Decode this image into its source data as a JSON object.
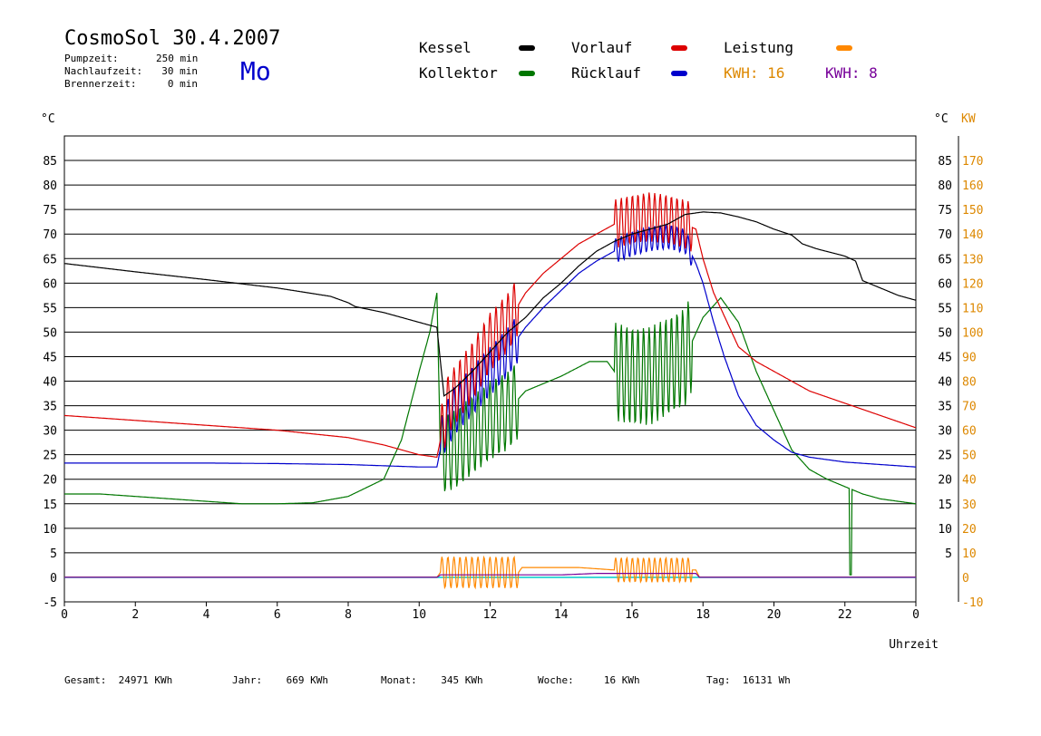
{
  "header": {
    "title": "CosmoSol 30.4.2007",
    "pumpzeit_label": "Pumpzeit:",
    "pumpzeit_value": "250 min",
    "nachlaufzeit_label": "Nachlaufzeit:",
    "nachlaufzeit_value": "30 min",
    "brennerzeit_label": "Brennerzeit:",
    "brennerzeit_value": "0 min",
    "day": "Mo"
  },
  "legend": {
    "kessel": "Kessel",
    "kollektor": "Kollektor",
    "vorlauf": "Vorlauf",
    "ruecklauf": "Rücklauf",
    "leistung": "Leistung",
    "kwh_orange": "KWH: 16",
    "kwh_purple": "KWH: 8"
  },
  "colors": {
    "kessel": "#000000",
    "kollektor": "#007700",
    "vorlauf": "#dd0000",
    "ruecklauf": "#0000cc",
    "leistung": "#ff8800",
    "kwh2": "#770099",
    "baseline": "#00cccc",
    "right_axis": "#dd8800"
  },
  "footer": {
    "gesamt": "Gesamt:  24971 KWh",
    "jahr": "Jahr:    669 KWh",
    "monat": "Monat:    345 KWh",
    "woche": "Woche:     16 KWh",
    "tag": "Tag:  16131 Wh"
  },
  "chart_data": {
    "type": "line",
    "xlabel": "Uhrzeit",
    "ylabel_left": "°C",
    "ylabel_right_c": "°C",
    "ylabel_right_kw": "KW",
    "xlim": [
      0,
      24
    ],
    "ylim": [
      -5,
      90
    ],
    "y2lim": [
      -10,
      180
    ],
    "grid": true,
    "x_ticks": [
      "0",
      "2",
      "4",
      "6",
      "8",
      "10",
      "12",
      "14",
      "16",
      "18",
      "20",
      "22",
      "0"
    ],
    "y_ticks_left": [
      "-5",
      "0",
      "5",
      "10",
      "15",
      "20",
      "25",
      "30",
      "35",
      "40",
      "45",
      "50",
      "55",
      "60",
      "65",
      "70",
      "75",
      "80",
      "85"
    ],
    "y_ticks_right_c": [
      "5",
      "10",
      "15",
      "20",
      "25",
      "30",
      "35",
      "40",
      "45",
      "50",
      "55",
      "60",
      "65",
      "70",
      "75",
      "80",
      "85"
    ],
    "y_ticks_right_kw": [
      "-10",
      "0",
      "10",
      "20",
      "30",
      "40",
      "50",
      "60",
      "70",
      "80",
      "90",
      "100",
      "110",
      "120",
      "130",
      "140",
      "150",
      "160",
      "170"
    ],
    "series": [
      {
        "name": "Kessel",
        "color": "#000000",
        "points": [
          [
            0,
            64
          ],
          [
            2,
            62.3
          ],
          [
            4,
            60.7
          ],
          [
            6,
            59
          ],
          [
            7.5,
            57.3
          ],
          [
            8,
            56
          ],
          [
            8.2,
            55.2
          ],
          [
            9,
            54
          ],
          [
            10,
            52
          ],
          [
            10.5,
            51
          ],
          [
            10.7,
            37
          ],
          [
            11,
            38.5
          ],
          [
            11.5,
            42
          ],
          [
            12,
            46
          ],
          [
            12.5,
            50
          ],
          [
            13,
            53
          ],
          [
            13.5,
            57
          ],
          [
            14,
            60
          ],
          [
            14.5,
            63.5
          ],
          [
            15,
            66.5
          ],
          [
            15.5,
            68.5
          ],
          [
            16,
            70
          ],
          [
            16.5,
            71
          ],
          [
            17,
            72
          ],
          [
            17.5,
            74
          ],
          [
            18,
            74.5
          ],
          [
            18.5,
            74.3
          ],
          [
            19,
            73.5
          ],
          [
            19.5,
            72.5
          ],
          [
            20,
            71
          ],
          [
            20.5,
            69.8
          ],
          [
            20.8,
            68
          ],
          [
            21.2,
            67
          ],
          [
            22,
            65.5
          ],
          [
            22.3,
            64.5
          ],
          [
            22.5,
            60.5
          ],
          [
            23,
            59
          ],
          [
            23.5,
            57.5
          ],
          [
            24,
            56.5
          ]
        ]
      },
      {
        "name": "Kollektor",
        "color": "#007700",
        "points": [
          [
            0,
            17
          ],
          [
            1,
            17
          ],
          [
            2,
            16.5
          ],
          [
            3,
            16
          ],
          [
            4,
            15.5
          ],
          [
            5,
            15
          ],
          [
            6,
            15
          ],
          [
            7,
            15.2
          ],
          [
            8,
            16.5
          ],
          [
            9,
            20
          ],
          [
            9.5,
            28
          ],
          [
            10,
            42
          ],
          [
            10.3,
            50
          ],
          [
            10.5,
            58
          ],
          [
            10.6,
            25
          ],
          [
            11,
            26
          ],
          [
            12,
            32
          ],
          [
            12.5,
            34
          ],
          [
            13,
            38
          ],
          [
            14,
            41
          ],
          [
            14.8,
            44
          ],
          [
            15.3,
            44
          ],
          [
            15.5,
            42
          ],
          [
            16,
            41
          ],
          [
            16.5,
            41
          ],
          [
            17,
            43
          ],
          [
            17.5,
            45
          ],
          [
            18,
            53
          ],
          [
            18.5,
            57
          ],
          [
            19,
            52
          ],
          [
            19.5,
            42
          ],
          [
            20,
            34
          ],
          [
            20.5,
            26
          ],
          [
            21,
            22
          ],
          [
            21.5,
            20
          ],
          [
            22,
            18.5
          ],
          [
            22.5,
            17
          ],
          [
            23,
            16
          ],
          [
            24,
            15
          ]
        ]
      },
      {
        "name": "Vorlauf",
        "color": "#dd0000",
        "points": [
          [
            0,
            33
          ],
          [
            2,
            32
          ],
          [
            4,
            31
          ],
          [
            6,
            30
          ],
          [
            8,
            28.5
          ],
          [
            9,
            27
          ],
          [
            10,
            25
          ],
          [
            10.5,
            24.5
          ],
          [
            10.8,
            35
          ],
          [
            11.5,
            42
          ],
          [
            12,
            48
          ],
          [
            12.5,
            52
          ],
          [
            13,
            58
          ],
          [
            13.5,
            62
          ],
          [
            14,
            65
          ],
          [
            14.5,
            68
          ],
          [
            15,
            70
          ],
          [
            15.5,
            72
          ],
          [
            16,
            73
          ],
          [
            16.5,
            73.5
          ],
          [
            17,
            73
          ],
          [
            17.5,
            72
          ],
          [
            17.8,
            71
          ],
          [
            18,
            65
          ],
          [
            18.3,
            58
          ],
          [
            19,
            47
          ],
          [
            19.5,
            44
          ],
          [
            20,
            42
          ],
          [
            20.5,
            40
          ],
          [
            21,
            38
          ],
          [
            22,
            35.5
          ],
          [
            23,
            33
          ],
          [
            24,
            30.5
          ]
        ]
      },
      {
        "name": "Rücklauf",
        "color": "#0000cc",
        "points": [
          [
            0,
            23.3
          ],
          [
            2,
            23.3
          ],
          [
            4,
            23.3
          ],
          [
            6,
            23.2
          ],
          [
            8,
            23
          ],
          [
            10,
            22.5
          ],
          [
            10.5,
            22.5
          ],
          [
            10.7,
            30
          ],
          [
            11,
            34
          ],
          [
            11.5,
            38
          ],
          [
            12,
            42
          ],
          [
            12.5,
            46
          ],
          [
            13,
            51
          ],
          [
            13.5,
            55
          ],
          [
            14,
            58.5
          ],
          [
            14.5,
            62
          ],
          [
            15,
            64.5
          ],
          [
            15.5,
            66.5
          ],
          [
            16,
            68
          ],
          [
            16.5,
            69
          ],
          [
            17,
            69.5
          ],
          [
            17.5,
            68.5
          ],
          [
            17.8,
            64
          ],
          [
            18,
            60
          ],
          [
            18.3,
            52
          ],
          [
            18.6,
            45
          ],
          [
            19,
            37
          ],
          [
            19.5,
            31
          ],
          [
            20,
            28
          ],
          [
            20.5,
            25.5
          ],
          [
            21,
            24.5
          ],
          [
            22,
            23.5
          ],
          [
            23,
            23
          ],
          [
            24,
            22.5
          ]
        ]
      },
      {
        "name": "Leistung",
        "color": "#ff8800",
        "points": [
          [
            0,
            0
          ],
          [
            10.5,
            0
          ],
          [
            10.6,
            1
          ],
          [
            12.8,
            1
          ],
          [
            12.9,
            2
          ],
          [
            14.5,
            2
          ],
          [
            15.5,
            1.5
          ],
          [
            17.8,
            1.5
          ],
          [
            17.9,
            0
          ],
          [
            24,
            0
          ]
        ]
      },
      {
        "name": "KWH 8",
        "color": "#770099",
        "points": [
          [
            0,
            0
          ],
          [
            10.5,
            0
          ],
          [
            10.6,
            0.5
          ],
          [
            14,
            0.5
          ],
          [
            15,
            0.8
          ],
          [
            17.8,
            0.8
          ],
          [
            17.9,
            0
          ],
          [
            24,
            0
          ]
        ]
      }
    ],
    "oscillations": [
      {
        "series": "Vorlauf",
        "x_from": 10.6,
        "x_to": 12.8,
        "amp": 6,
        "cycles": 13
      },
      {
        "series": "Rücklauf",
        "x_from": 10.6,
        "x_to": 12.8,
        "amp": 5,
        "cycles": 13
      },
      {
        "series": "Kollektor",
        "x_from": 10.6,
        "x_to": 12.8,
        "amp": 8,
        "cycles": 13
      },
      {
        "series": "Vorlauf",
        "x_from": 15.5,
        "x_to": 17.7,
        "amp": 5,
        "cycles": 14
      },
      {
        "series": "Rücklauf",
        "x_from": 15.5,
        "x_to": 17.7,
        "amp": 2.5,
        "cycles": 14
      },
      {
        "series": "Kollektor",
        "x_from": 15.5,
        "x_to": 17.7,
        "amp": 10,
        "cycles": 14
      },
      {
        "series": "Leistung",
        "x_from": 10.6,
        "x_to": 12.8,
        "amp": 3.2,
        "cycles": 13
      },
      {
        "series": "Leistung",
        "x_from": 15.5,
        "x_to": 17.7,
        "amp": 2.5,
        "cycles": 14
      }
    ],
    "dips": [
      {
        "series": "Kollektor",
        "x": 22.15,
        "to": 0.5
      }
    ]
  }
}
